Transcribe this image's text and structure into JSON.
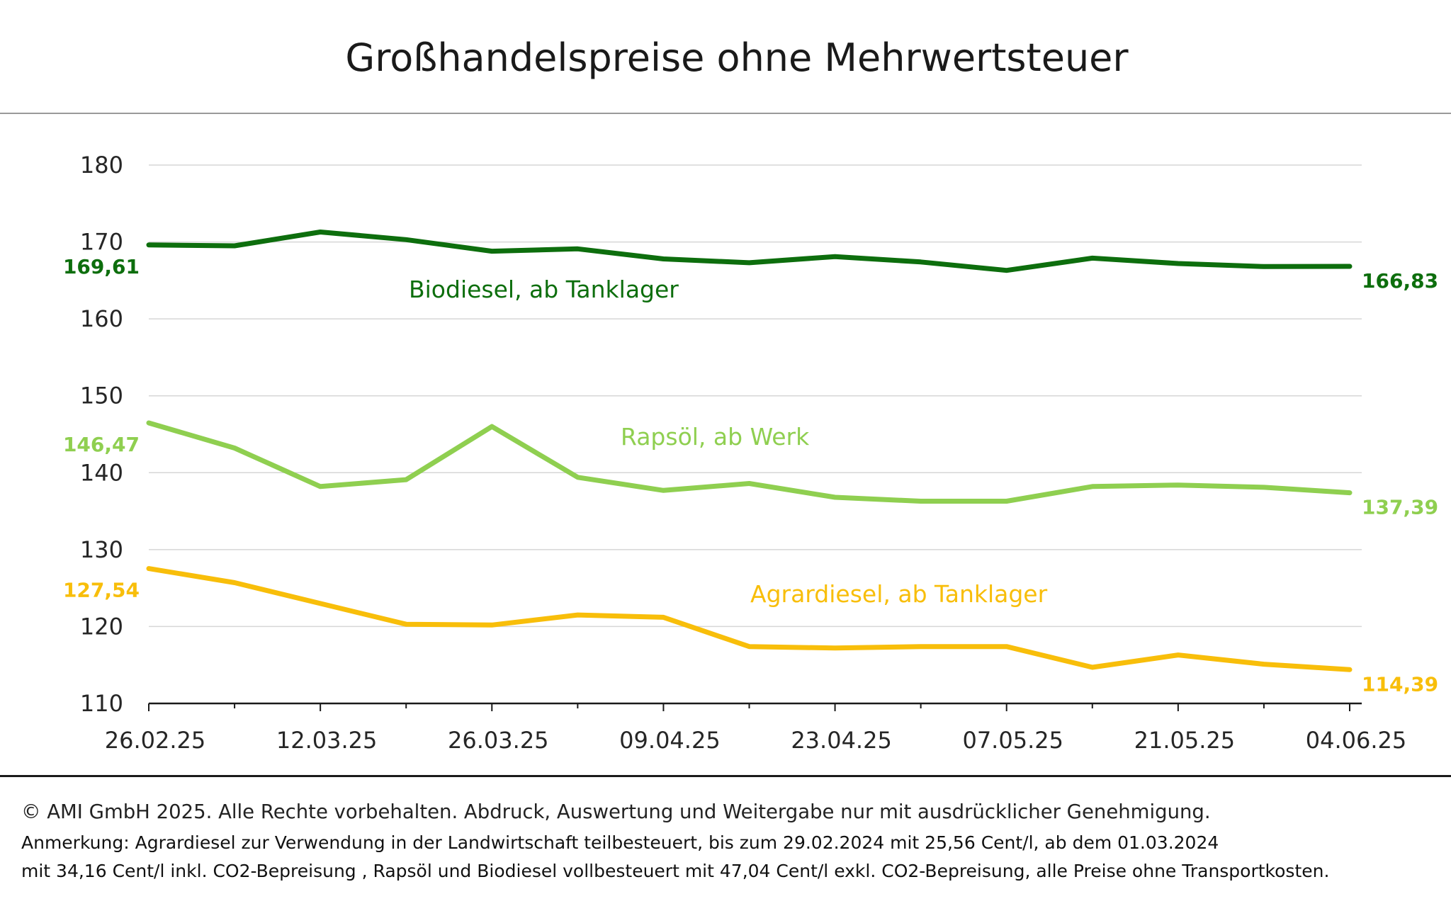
{
  "chart_data": {
    "type": "line",
    "title": "Großhandelspreise ohne Mehrwertsteuer",
    "xlabel": "",
    "ylabel": "",
    "ylim": [
      110,
      180
    ],
    "y_ticks": [
      "110",
      "120",
      "130",
      "140",
      "150",
      "160",
      "170",
      "180"
    ],
    "x_ticks": [
      "26.02.25",
      "12.03.25",
      "26.03.25",
      "09.04.25",
      "23.04.25",
      "07.05.25",
      "21.05.25",
      "04.06.25"
    ],
    "x_dates": [
      "2025-02-26",
      "2025-03-05",
      "2025-03-12",
      "2025-03-19",
      "2025-03-26",
      "2025-04-02",
      "2025-04-09",
      "2025-04-16",
      "2025-04-23",
      "2025-04-30",
      "2025-05-07",
      "2025-05-14",
      "2025-05-21",
      "2025-05-28",
      "2025-06-04"
    ],
    "grid": true,
    "legend": "inline",
    "series": [
      {
        "name": "Biodiesel, ab Tanklager",
        "color": "#0d6e0d",
        "values": [
          169.61,
          169.5,
          171.3,
          170.3,
          168.8,
          169.1,
          167.8,
          167.3,
          168.1,
          167.4,
          166.3,
          167.9,
          167.2,
          166.8,
          166.83
        ],
        "first_label": "169,61",
        "last_label": "166,83"
      },
      {
        "name": "Rapsöl, ab Werk",
        "color": "#8fcf50",
        "values": [
          146.47,
          143.2,
          138.2,
          139.1,
          146.0,
          139.4,
          137.7,
          138.6,
          136.8,
          136.3,
          136.3,
          138.2,
          138.4,
          138.1,
          137.39
        ],
        "first_label": "146,47",
        "last_label": "137,39"
      },
      {
        "name": "Agrardiesel, ab Tanklager",
        "color": "#f8be0a",
        "values": [
          127.54,
          125.7,
          123.0,
          120.3,
          120.2,
          121.5,
          121.2,
          117.4,
          117.2,
          117.4,
          117.4,
          114.7,
          116.3,
          115.1,
          114.39
        ],
        "first_label": "127,54",
        "last_label": "114,39"
      }
    ]
  },
  "footer": {
    "copyright": "© AMI GmbH 2025.  Alle Rechte vorbehalten.  Abdruck, Auswertung und Weitergabe nur mit ausdrücklicher Genehmigung.",
    "note_line1": "Anmerkung: Agrardiesel zur Verwendung in der Landwirtschaft teilbesteuert, bis zum 29.02.2024 mit 25,56 Cent/l, ab dem 01.03.2024",
    "note_line2": "mit 34,16 Cent/l inkl. CO2-Bepreisung , Rapsöl und Biodiesel vollbesteuert mit 47,04 Cent/l exkl. CO2-Bepreisung, alle Preise ohne Transportkosten."
  }
}
